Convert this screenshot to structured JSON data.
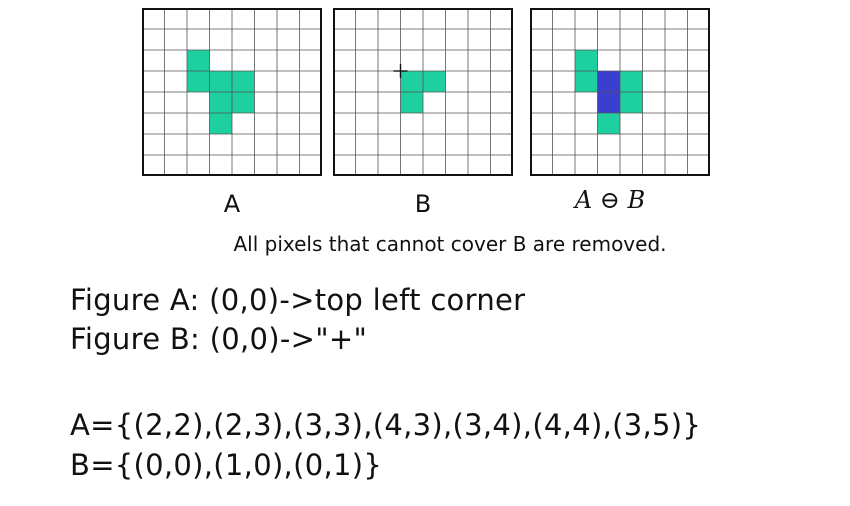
{
  "colors": {
    "member": "#1ecf9f",
    "origin_result": "#3a3fd0",
    "grid_line": "#555555",
    "frame": "#111111"
  },
  "panels": [
    {
      "label": "A",
      "cells": [
        [
          2,
          2
        ],
        [
          2,
          3
        ],
        [
          3,
          3
        ],
        [
          4,
          3
        ],
        [
          3,
          4
        ],
        [
          4,
          4
        ],
        [
          3,
          5
        ]
      ],
      "marked": [],
      "origin_mark": null
    },
    {
      "label": "B",
      "cells": [
        [
          3,
          3
        ],
        [
          4,
          3
        ],
        [
          3,
          4
        ]
      ],
      "marked": [],
      "origin_mark": [
        3,
        3
      ]
    },
    {
      "label": "A ⊖ B",
      "cells": [
        [
          2,
          2
        ],
        [
          2,
          3
        ],
        [
          4,
          3
        ],
        [
          4,
          4
        ],
        [
          3,
          5
        ]
      ],
      "marked": [
        [
          3,
          3
        ],
        [
          3,
          4
        ]
      ],
      "origin_mark": null
    }
  ],
  "caption": "All pixels that cannot cover B are removed.",
  "lines": {
    "fig_a": "Figure A: (0,0)->top left corner",
    "fig_b": "Figure B: (0,0)->\"+\"",
    "set_a": "A={(2,2),(2,3),(3,3),(4,3),(3,4),(4,4),(3,5)}",
    "set_b": "B={(0,0),(1,0),(0,1)}"
  }
}
